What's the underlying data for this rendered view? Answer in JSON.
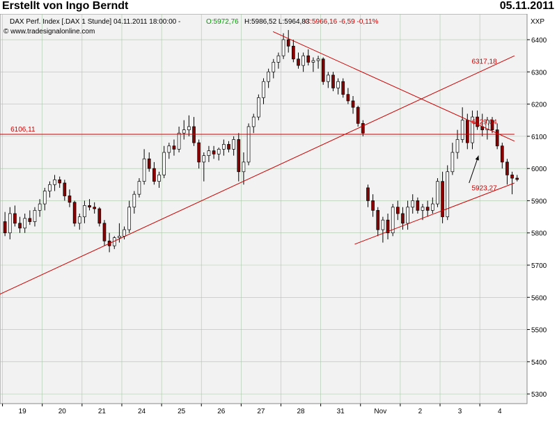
{
  "header": {
    "title": "Erstellt von Ingo Berndt",
    "date": "05.11.2011"
  },
  "chart_data": {
    "type": "candlestick",
    "info_line": {
      "instrument": "DAX Perf. Index [.DAX  1 Stunde] 04.11.2011 18:00:00 -",
      "open": "O:5972,76",
      "high_low": "H:5986,52 L:5964,83",
      "close": "C:5966,16 -6,59 -0,11%"
    },
    "copyright": "© www.tradesignalonline.com",
    "ylabel": "XXP",
    "ylim": [
      5270,
      6480
    ],
    "y_ticks": [
      6400,
      6300,
      6200,
      6100,
      6000,
      5900,
      5800,
      5700,
      5600,
      5500,
      5400,
      5300
    ],
    "x_ticks": [
      "19",
      "20",
      "21",
      "24",
      "25",
      "26",
      "27",
      "28",
      "31",
      "Nov",
      "2",
      "3",
      "4"
    ],
    "candles_per_day": 8,
    "candles": [
      [
        5835,
        5865,
        5790,
        5800
      ],
      [
        5800,
        5880,
        5780,
        5860
      ],
      [
        5860,
        5885,
        5820,
        5830
      ],
      [
        5830,
        5850,
        5800,
        5815
      ],
      [
        5815,
        5860,
        5800,
        5845
      ],
      [
        5845,
        5870,
        5825,
        5835
      ],
      [
        5835,
        5880,
        5820,
        5870
      ],
      [
        5870,
        5905,
        5850,
        5890
      ],
      [
        5890,
        5940,
        5870,
        5930
      ],
      [
        5930,
        5960,
        5910,
        5950
      ],
      [
        5950,
        5980,
        5930,
        5965
      ],
      [
        5965,
        5975,
        5940,
        5955
      ],
      [
        5955,
        5965,
        5900,
        5915
      ],
      [
        5915,
        5935,
        5880,
        5895
      ],
      [
        5895,
        5900,
        5820,
        5830
      ],
      [
        5830,
        5860,
        5810,
        5850
      ],
      [
        5850,
        5900,
        5830,
        5885
      ],
      [
        5885,
        5905,
        5870,
        5880
      ],
      [
        5880,
        5895,
        5860,
        5875
      ],
      [
        5875,
        5880,
        5820,
        5830
      ],
      [
        5830,
        5840,
        5760,
        5775
      ],
      [
        5775,
        5800,
        5740,
        5760
      ],
      [
        5760,
        5790,
        5750,
        5785
      ],
      [
        5785,
        5830,
        5770,
        5790
      ],
      [
        5790,
        5820,
        5780,
        5810
      ],
      [
        5810,
        5900,
        5800,
        5880
      ],
      [
        5880,
        5930,
        5860,
        5920
      ],
      [
        5920,
        5970,
        5910,
        5960
      ],
      [
        5960,
        6060,
        5950,
        6030
      ],
      [
        6030,
        6050,
        5990,
        6000
      ],
      [
        6000,
        6020,
        5950,
        5960
      ],
      [
        5960,
        5990,
        5940,
        5980
      ],
      [
        5980,
        6070,
        5970,
        6050
      ],
      [
        6050,
        6080,
        6030,
        6070
      ],
      [
        6070,
        6090,
        6040,
        6060
      ],
      [
        6060,
        6130,
        6050,
        6110
      ],
      [
        6110,
        6150,
        6090,
        6120
      ],
      [
        6120,
        6165,
        6100,
        6130
      ],
      [
        6130,
        6160,
        6070,
        6080
      ],
      [
        6080,
        6090,
        6000,
        6020
      ],
      [
        6020,
        6050,
        5960,
        6040
      ],
      [
        6040,
        6070,
        6020,
        6055
      ],
      [
        6055,
        6070,
        6030,
        6045
      ],
      [
        6045,
        6065,
        6025,
        6060
      ],
      [
        6060,
        6090,
        6040,
        6075
      ],
      [
        6075,
        6085,
        6050,
        6060
      ],
      [
        6060,
        6100,
        6040,
        6090
      ],
      [
        6090,
        6110,
        5960,
        5990
      ],
      [
        5990,
        6050,
        5950,
        6020
      ],
      [
        6020,
        6140,
        6010,
        6130
      ],
      [
        6130,
        6170,
        6110,
        6160
      ],
      [
        6160,
        6230,
        6150,
        6220
      ],
      [
        6220,
        6280,
        6200,
        6270
      ],
      [
        6270,
        6310,
        6250,
        6300
      ],
      [
        6300,
        6340,
        6280,
        6330
      ],
      [
        6330,
        6360,
        6310,
        6350
      ],
      [
        6350,
        6420,
        6340,
        6400
      ],
      [
        6400,
        6430,
        6360,
        6380
      ],
      [
        6380,
        6400,
        6330,
        6340
      ],
      [
        6340,
        6360,
        6310,
        6320
      ],
      [
        6320,
        6360,
        6300,
        6350
      ],
      [
        6350,
        6370,
        6320,
        6330
      ],
      [
        6330,
        6345,
        6300,
        6335
      ],
      [
        6335,
        6350,
        6310,
        6340
      ],
      [
        6340,
        6345,
        6260,
        6270
      ],
      [
        6270,
        6300,
        6250,
        6290
      ],
      [
        6290,
        6300,
        6240,
        6250
      ],
      [
        6250,
        6280,
        6230,
        6270
      ],
      [
        6270,
        6280,
        6220,
        6230
      ],
      [
        6230,
        6250,
        6200,
        6210
      ],
      [
        6210,
        6225,
        6170,
        6190
      ],
      [
        6190,
        6195,
        6130,
        6140
      ],
      [
        6140,
        6150,
        6100,
        6110
      ],
      [
        5940,
        5950,
        5880,
        5900
      ],
      [
        5900,
        5920,
        5850,
        5870
      ],
      [
        5870,
        5880,
        5790,
        5810
      ],
      [
        5810,
        5850,
        5770,
        5840
      ],
      [
        5840,
        5860,
        5780,
        5800
      ],
      [
        5800,
        5890,
        5790,
        5880
      ],
      [
        5880,
        5900,
        5840,
        5860
      ],
      [
        5860,
        5880,
        5810,
        5830
      ],
      [
        5830,
        5900,
        5810,
        5880
      ],
      [
        5880,
        5920,
        5860,
        5900
      ],
      [
        5900,
        5910,
        5860,
        5870
      ],
      [
        5870,
        5890,
        5840,
        5880
      ],
      [
        5880,
        5900,
        5850,
        5870
      ],
      [
        5870,
        5910,
        5860,
        5890
      ],
      [
        5890,
        5970,
        5880,
        5960
      ],
      [
        5960,
        5990,
        5830,
        5850
      ],
      [
        5850,
        6010,
        5840,
        5990
      ],
      [
        5990,
        6080,
        5980,
        6050
      ],
      [
        6050,
        6120,
        6030,
        6090
      ],
      [
        6090,
        6190,
        6080,
        6150
      ],
      [
        6150,
        6170,
        6060,
        6080
      ],
      [
        6080,
        6180,
        6060,
        6160
      ],
      [
        6160,
        6180,
        6120,
        6130
      ],
      [
        6130,
        6170,
        6100,
        6120
      ],
      [
        6120,
        6160,
        6090,
        6150
      ],
      [
        6150,
        6160,
        6110,
        6120
      ],
      [
        6120,
        6140,
        6060,
        6070
      ],
      [
        6070,
        6080,
        6000,
        6020
      ],
      [
        6020,
        6030,
        5950,
        5980
      ],
      [
        5980,
        5990,
        5920,
        5970
      ],
      [
        5970,
        5980,
        5960,
        5966
      ]
    ],
    "lines": [
      {
        "x1": 0.0,
        "y1": 5610,
        "x2": 97.6,
        "y2": 6350,
        "color": "#cc0000"
      },
      {
        "x1": 51.8,
        "y1": 6425,
        "x2": 97.6,
        "y2": 6085,
        "color": "#cc0000"
      },
      {
        "x1": 67.3,
        "y1": 5765,
        "x2": 97.6,
        "y2": 5955,
        "color": "#cc0000"
      },
      {
        "x1": 0.0,
        "y1": 6106.11,
        "x2": 97.6,
        "y2": 6106.11,
        "color": "#cc0000"
      }
    ],
    "labels": [
      {
        "text": "6317,18",
        "x": 89.5,
        "y": 6317.18,
        "color": "#cc0000"
      },
      {
        "text": "6129,04",
        "x": 89.5,
        "y": 6129.04,
        "color": "#cc0000"
      },
      {
        "text": "5923,27",
        "x": 89.5,
        "y": 5923.27,
        "color": "#cc0000"
      },
      {
        "text": "6106,11",
        "x": 2.0,
        "y": 6106.11,
        "color": "#cc0000"
      }
    ],
    "arrow": {
      "x1": 89.0,
      "y1": 5955,
      "x2": 90.8,
      "y2": 6040,
      "color": "#000000"
    },
    "colors": {
      "up": "#ffffff",
      "down": "#8b0000",
      "outline": "#000000",
      "bg": "#f2f2f2",
      "grid": "#a8c8a8"
    }
  }
}
